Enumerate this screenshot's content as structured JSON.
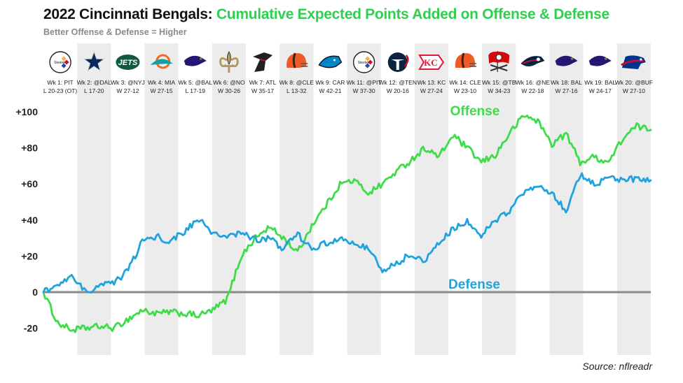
{
  "title_main": "2022 Cincinnati Bengals: ",
  "title_accent": "Cumulative Expected Points Added on Offense & Defense",
  "subtitle": "Better Offense & Defense = Higher",
  "source": "Source: nflreadr",
  "colors": {
    "offense": "#3ddc49",
    "defense": "#1fa3df",
    "shade": "#ececec",
    "zero_line": "#8a8a8a"
  },
  "chart_data": {
    "type": "line",
    "title": "2022 Cincinnati Bengals: Cumulative Expected Points Added on Offense & Defense",
    "subtitle": "Better Offense & Defense = Higher",
    "ylim": [
      -28,
      112
    ],
    "yticks": [
      -20,
      0,
      20,
      40,
      60,
      80,
      100
    ],
    "ytick_labels": [
      "-20",
      "0",
      "+20",
      "+40",
      "+60",
      "+80",
      "+100"
    ],
    "grid": false,
    "games": [
      {
        "week": "Wk 1: PIT",
        "result": "L 20-23 (OT)",
        "logo": "steelers-logo-icon"
      },
      {
        "week": "Wk 2: @DAL",
        "result": "L 17-20",
        "logo": "cowboys-logo-icon"
      },
      {
        "week": "Wk 3: @NYJ",
        "result": "W 27-12",
        "logo": "jets-logo-icon"
      },
      {
        "week": "Wk 4: MIA",
        "result": "W 27-15",
        "logo": "dolphins-logo-icon"
      },
      {
        "week": "Wk 5: @BAL",
        "result": "L 17-19",
        "logo": "ravens-logo-icon"
      },
      {
        "week": "Wk 6: @NO",
        "result": "W 30-26",
        "logo": "saints-logo-icon"
      },
      {
        "week": "Wk 7: ATL",
        "result": "W 35-17",
        "logo": "falcons-logo-icon"
      },
      {
        "week": "Wk 8: @CLE",
        "result": "L 13-32",
        "logo": "browns-logo-icon"
      },
      {
        "week": "Wk 9: CAR",
        "result": "W 42-21",
        "logo": "panthers-logo-icon"
      },
      {
        "week": "Wk 11: @PIT",
        "result": "W 37-30",
        "logo": "steelers-logo-icon"
      },
      {
        "week": "Wk 12: @TEN",
        "result": "W 20-16",
        "logo": "titans-logo-icon"
      },
      {
        "week": "Wk 13: KC",
        "result": "W 27-24",
        "logo": "chiefs-logo-icon"
      },
      {
        "week": "Wk 14: CLE",
        "result": "W 23-10",
        "logo": "browns-logo-icon"
      },
      {
        "week": "Wk 15: @TB",
        "result": "W 34-23",
        "logo": "buccaneers-logo-icon"
      },
      {
        "week": "Wk 16: @NE",
        "result": "W 22-18",
        "logo": "patriots-logo-icon"
      },
      {
        "week": "Wk 18: BAL",
        "result": "W 27-16",
        "logo": "ravens-logo-icon"
      },
      {
        "week": "Wk 19: BAL",
        "result": "W 24-17",
        "logo": "ravens-logo-icon"
      },
      {
        "week": "Wk 20: @BUF",
        "result": "W 27-10",
        "logo": "bills-logo-icon"
      }
    ],
    "series": [
      {
        "name": "Offense",
        "values": [
          0,
          -17,
          -21,
          -20,
          -19,
          -20,
          -15,
          -10,
          -12,
          -11,
          -12,
          -13,
          -10,
          -4,
          20,
          30,
          36,
          30,
          22,
          37,
          48,
          60,
          62,
          55,
          60,
          67,
          73,
          80,
          75,
          87,
          80,
          72,
          76,
          88,
          98,
          95,
          82,
          88,
          72,
          75,
          72,
          85,
          92,
          90
        ]
      },
      {
        "name": "Defense",
        "values": [
          0,
          4,
          8,
          0,
          4,
          5,
          12,
          28,
          31,
          28,
          34,
          40,
          33,
          30,
          33,
          29,
          30,
          24,
          32,
          24,
          27,
          29,
          27,
          25,
          12,
          16,
          21,
          17,
          28,
          35,
          39,
          32,
          40,
          45,
          55,
          59,
          55,
          45,
          65,
          60,
          63,
          62,
          63,
          62
        ]
      }
    ]
  }
}
